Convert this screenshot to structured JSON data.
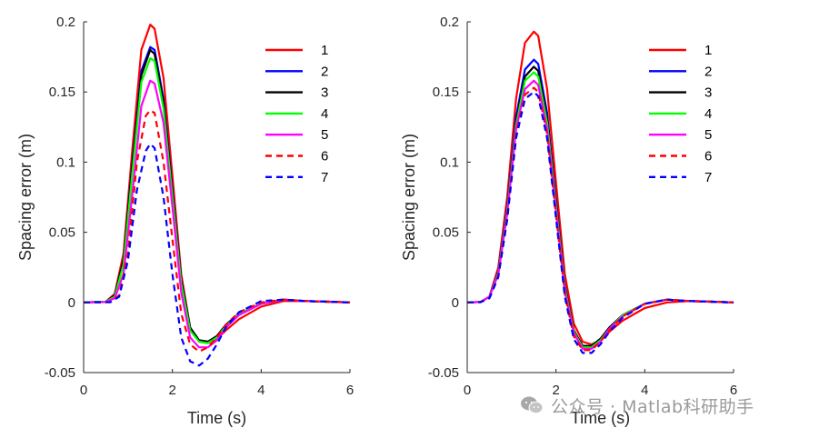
{
  "figure_style": {
    "background": "#ffffff",
    "axes_color": "#262626"
  },
  "chart_data": [
    {
      "type": "line",
      "xlabel": "Time (s)",
      "ylabel": "Spacing error (m)",
      "xlim": [
        0,
        6
      ],
      "ylim": [
        -0.05,
        0.2
      ],
      "xticks": [
        0,
        2,
        4,
        6
      ],
      "yticks": [
        -0.05,
        0,
        0.05,
        0.1,
        0.15,
        0.2
      ],
      "ytick_labels": [
        "-0.05",
        "0",
        "0.05",
        "0.1",
        "0.15",
        "0.2"
      ],
      "grid": false,
      "legend_position": "top-right",
      "series": [
        {
          "name": "1",
          "color": "#ff0000",
          "dash": "solid",
          "x": [
            0,
            0.5,
            0.7,
            0.9,
            1.1,
            1.3,
            1.5,
            1.6,
            1.8,
            2.0,
            2.2,
            2.4,
            2.6,
            2.8,
            3.0,
            3.2,
            3.5,
            4.0,
            4.5,
            5.0,
            5.5,
            6.0
          ],
          "y": [
            0,
            0.0005,
            0.006,
            0.035,
            0.11,
            0.18,
            0.198,
            0.195,
            0.16,
            0.09,
            0.02,
            -0.018,
            -0.028,
            -0.029,
            -0.026,
            -0.02,
            -0.012,
            -0.003,
            0.001,
            0.001,
            0.0005,
            0
          ]
        },
        {
          "name": "2",
          "color": "#0000ff",
          "dash": "solid",
          "x": [
            0,
            0.5,
            0.7,
            0.9,
            1.1,
            1.3,
            1.5,
            1.6,
            1.8,
            2.0,
            2.2,
            2.4,
            2.6,
            2.8,
            3.0,
            3.2,
            3.5,
            4.0,
            4.5,
            5.0,
            5.5,
            6.0
          ],
          "y": [
            0,
            0.0005,
            0.005,
            0.03,
            0.1,
            0.165,
            0.182,
            0.18,
            0.145,
            0.08,
            0.016,
            -0.018,
            -0.027,
            -0.028,
            -0.024,
            -0.017,
            -0.009,
            -0.001,
            0.002,
            0.001,
            0.0005,
            0
          ]
        },
        {
          "name": "3",
          "color": "#000000",
          "dash": "solid",
          "x": [
            0,
            0.5,
            0.7,
            0.9,
            1.1,
            1.3,
            1.5,
            1.6,
            1.8,
            2.0,
            2.2,
            2.4,
            2.6,
            2.8,
            3.0,
            3.2,
            3.5,
            4.0,
            4.5,
            5.0,
            5.5,
            6.0
          ],
          "y": [
            0,
            0.0005,
            0.005,
            0.03,
            0.098,
            0.162,
            0.18,
            0.177,
            0.142,
            0.078,
            0.015,
            -0.018,
            -0.027,
            -0.028,
            -0.024,
            -0.016,
            -0.008,
            -0.001,
            0.002,
            0.001,
            0.0005,
            0
          ]
        },
        {
          "name": "4",
          "color": "#00ff00",
          "dash": "solid",
          "x": [
            0,
            0.5,
            0.7,
            0.9,
            1.1,
            1.3,
            1.5,
            1.6,
            1.8,
            2.0,
            2.2,
            2.4,
            2.6,
            2.8,
            3.0,
            3.2,
            3.5,
            4.0,
            4.5,
            5.0,
            5.5,
            6.0
          ],
          "y": [
            0,
            0.0005,
            0.004,
            0.027,
            0.093,
            0.157,
            0.174,
            0.172,
            0.138,
            0.075,
            0.013,
            -0.02,
            -0.028,
            -0.029,
            -0.025,
            -0.017,
            -0.008,
            -0.001,
            0.002,
            0.001,
            0.0005,
            0
          ]
        },
        {
          "name": "5",
          "color": "#ff00ff",
          "dash": "solid",
          "x": [
            0,
            0.5,
            0.7,
            0.9,
            1.1,
            1.3,
            1.5,
            1.6,
            1.8,
            2.0,
            2.2,
            2.4,
            2.6,
            2.8,
            3.0,
            3.2,
            3.5,
            4.0,
            4.5,
            5.0,
            5.5,
            6.0
          ],
          "y": [
            0,
            0.0003,
            0.003,
            0.02,
            0.078,
            0.14,
            0.158,
            0.156,
            0.128,
            0.068,
            0.007,
            -0.025,
            -0.032,
            -0.032,
            -0.027,
            -0.018,
            -0.009,
            -0.001,
            0.002,
            0.001,
            0.0005,
            0
          ]
        },
        {
          "name": "6",
          "color": "#ff0000",
          "dash": "dashed",
          "x": [
            0,
            0.6,
            0.8,
            1.0,
            1.2,
            1.4,
            1.5,
            1.6,
            1.8,
            2.0,
            2.2,
            2.4,
            2.6,
            2.8,
            3.0,
            3.2,
            3.5,
            4.0,
            4.5,
            5.0,
            5.5,
            6.0
          ],
          "y": [
            0,
            0.0002,
            0.005,
            0.035,
            0.1,
            0.133,
            0.137,
            0.135,
            0.1,
            0.045,
            -0.008,
            -0.03,
            -0.035,
            -0.032,
            -0.025,
            -0.016,
            -0.007,
            0,
            0.002,
            0.001,
            0.0005,
            0
          ]
        },
        {
          "name": "7",
          "color": "#0000ff",
          "dash": "dashed",
          "x": [
            0,
            0.6,
            0.8,
            1.0,
            1.2,
            1.4,
            1.5,
            1.6,
            1.8,
            2.0,
            2.2,
            2.4,
            2.6,
            2.8,
            3.0,
            3.2,
            3.5,
            4.0,
            4.5,
            5.0,
            5.5,
            6.0
          ],
          "y": [
            0,
            0.0002,
            0.004,
            0.03,
            0.08,
            0.108,
            0.113,
            0.11,
            0.075,
            0.02,
            -0.025,
            -0.042,
            -0.045,
            -0.04,
            -0.03,
            -0.018,
            -0.007,
            0.001,
            0.002,
            0.001,
            0.0005,
            0
          ]
        }
      ]
    },
    {
      "type": "line",
      "xlabel": "Time (s)",
      "ylabel": "Spacing error (m)",
      "xlim": [
        0,
        6
      ],
      "ylim": [
        -0.05,
        0.2
      ],
      "xticks": [
        0,
        2,
        4,
        6
      ],
      "yticks": [
        -0.05,
        0,
        0.05,
        0.1,
        0.15,
        0.2
      ],
      "ytick_labels": [
        "-0.05",
        "0",
        "0.05",
        "0.1",
        "0.15",
        "0.2"
      ],
      "grid": false,
      "legend_position": "top-right",
      "series": [
        {
          "name": "1",
          "color": "#ff0000",
          "dash": "solid",
          "x": [
            0,
            0.3,
            0.5,
            0.7,
            0.9,
            1.1,
            1.3,
            1.5,
            1.6,
            1.8,
            2.0,
            2.2,
            2.4,
            2.6,
            2.8,
            3.0,
            3.2,
            3.5,
            4.0,
            4.5,
            5.0,
            5.5,
            6.0
          ],
          "y": [
            0,
            0.0003,
            0.004,
            0.025,
            0.075,
            0.145,
            0.185,
            0.193,
            0.19,
            0.152,
            0.085,
            0.02,
            -0.015,
            -0.028,
            -0.03,
            -0.027,
            -0.021,
            -0.013,
            -0.004,
            0,
            0.001,
            0.0005,
            0
          ]
        },
        {
          "name": "2",
          "color": "#0000ff",
          "dash": "solid",
          "x": [
            0,
            0.3,
            0.5,
            0.7,
            0.9,
            1.1,
            1.3,
            1.5,
            1.6,
            1.8,
            2.0,
            2.2,
            2.4,
            2.6,
            2.8,
            3.0,
            3.2,
            3.5,
            4.0,
            4.5,
            5.0,
            5.5,
            6.0
          ],
          "y": [
            0,
            0.0003,
            0.004,
            0.022,
            0.068,
            0.132,
            0.166,
            0.173,
            0.17,
            0.135,
            0.072,
            0.012,
            -0.02,
            -0.031,
            -0.031,
            -0.026,
            -0.018,
            -0.009,
            -0.001,
            0.002,
            0.001,
            0.0005,
            0
          ]
        },
        {
          "name": "3",
          "color": "#000000",
          "dash": "solid",
          "x": [
            0,
            0.3,
            0.5,
            0.7,
            0.9,
            1.1,
            1.3,
            1.5,
            1.6,
            1.8,
            2.0,
            2.2,
            2.4,
            2.6,
            2.8,
            3.0,
            3.2,
            3.5,
            4.0,
            4.5,
            5.0,
            5.5,
            6.0
          ],
          "y": [
            0,
            0.0003,
            0.004,
            0.021,
            0.066,
            0.128,
            0.161,
            0.168,
            0.165,
            0.131,
            0.07,
            0.011,
            -0.02,
            -0.031,
            -0.031,
            -0.026,
            -0.018,
            -0.009,
            -0.001,
            0.002,
            0.001,
            0.0005,
            0
          ]
        },
        {
          "name": "4",
          "color": "#00ff00",
          "dash": "solid",
          "x": [
            0,
            0.3,
            0.5,
            0.7,
            0.9,
            1.1,
            1.3,
            1.5,
            1.6,
            1.8,
            2.0,
            2.2,
            2.4,
            2.6,
            2.8,
            3.0,
            3.2,
            3.5,
            4.0,
            4.5,
            5.0,
            5.5,
            6.0
          ],
          "y": [
            0,
            0.0003,
            0.004,
            0.021,
            0.065,
            0.126,
            0.158,
            0.164,
            0.161,
            0.128,
            0.068,
            0.01,
            -0.021,
            -0.032,
            -0.032,
            -0.027,
            -0.019,
            -0.009,
            -0.001,
            0.002,
            0.001,
            0.0005,
            0
          ]
        },
        {
          "name": "5",
          "color": "#ff00ff",
          "dash": "solid",
          "x": [
            0,
            0.3,
            0.5,
            0.7,
            0.9,
            1.1,
            1.3,
            1.5,
            1.6,
            1.8,
            2.0,
            2.2,
            2.4,
            2.6,
            2.8,
            3.0,
            3.2,
            3.5,
            4.0,
            4.5,
            5.0,
            5.5,
            6.0
          ],
          "y": [
            0,
            0.0003,
            0.004,
            0.02,
            0.063,
            0.123,
            0.152,
            0.158,
            0.155,
            0.123,
            0.065,
            0.008,
            -0.022,
            -0.033,
            -0.033,
            -0.028,
            -0.019,
            -0.01,
            -0.001,
            0.002,
            0.001,
            0.0005,
            0
          ]
        },
        {
          "name": "6",
          "color": "#ff0000",
          "dash": "dashed",
          "x": [
            0,
            0.3,
            0.5,
            0.7,
            0.9,
            1.1,
            1.3,
            1.5,
            1.6,
            1.8,
            2.0,
            2.2,
            2.4,
            2.6,
            2.8,
            3.0,
            3.2,
            3.5,
            4.0,
            4.5,
            5.0,
            5.5,
            6.0
          ],
          "y": [
            0,
            0.0002,
            0.003,
            0.019,
            0.061,
            0.12,
            0.148,
            0.153,
            0.15,
            0.12,
            0.062,
            0.006,
            -0.024,
            -0.034,
            -0.034,
            -0.028,
            -0.02,
            -0.01,
            -0.001,
            0.002,
            0.001,
            0.0005,
            0
          ]
        },
        {
          "name": "7",
          "color": "#0000ff",
          "dash": "dashed",
          "x": [
            0,
            0.3,
            0.5,
            0.7,
            0.9,
            1.1,
            1.3,
            1.5,
            1.6,
            1.8,
            2.0,
            2.2,
            2.4,
            2.6,
            2.8,
            3.0,
            3.2,
            3.5,
            4.0,
            4.5,
            5.0,
            5.5,
            6.0
          ],
          "y": [
            0,
            0.0002,
            0.003,
            0.018,
            0.059,
            0.117,
            0.145,
            0.15,
            0.147,
            0.117,
            0.06,
            0.004,
            -0.026,
            -0.036,
            -0.036,
            -0.03,
            -0.021,
            -0.011,
            -0.001,
            0.002,
            0.001,
            0.0005,
            0
          ]
        }
      ]
    }
  ],
  "watermark": {
    "text": "公众号 · Matlab科研助手",
    "icon": "wechat-icon"
  }
}
